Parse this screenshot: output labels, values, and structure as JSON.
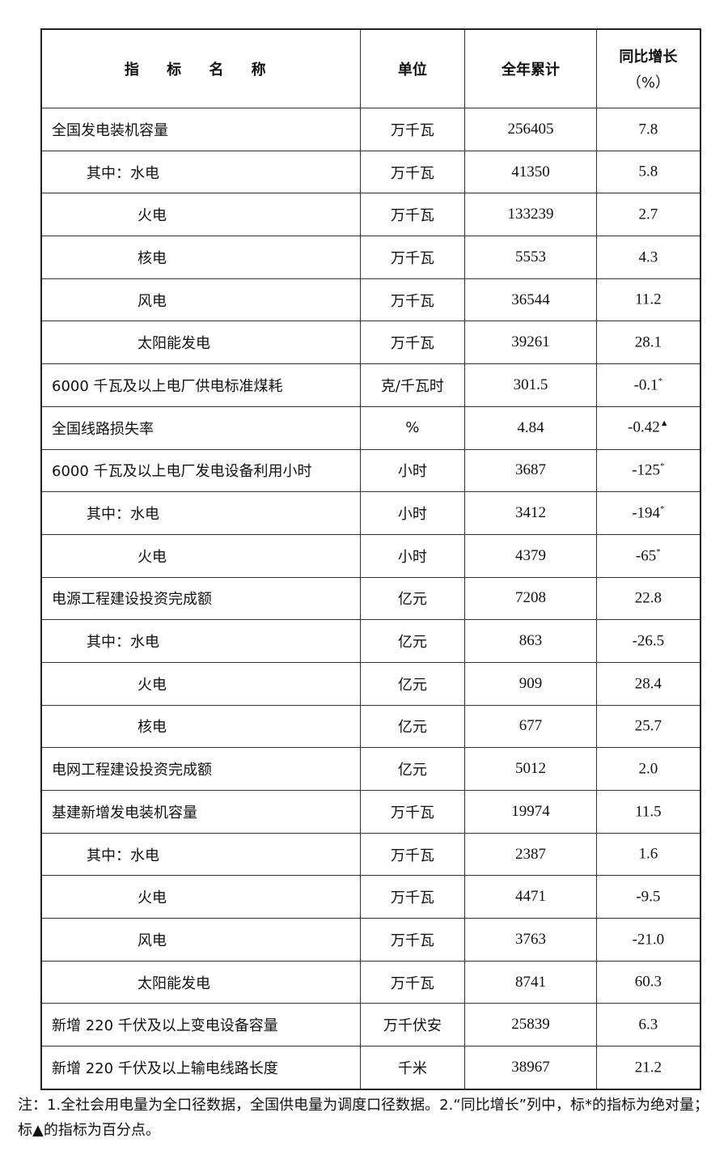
{
  "header": {
    "name": "指 标 名 称",
    "unit": "单位",
    "total": "全年累计",
    "growth_line1": "同比增长",
    "growth_line2": "（%）"
  },
  "rows": [
    {
      "name": "全国发电装机容量",
      "level": 0,
      "unit": "万千瓦",
      "total": "256405",
      "growth": "7.8",
      "mark": ""
    },
    {
      "name": "其中：水电",
      "level": 1,
      "unit": "万千瓦",
      "total": "41350",
      "growth": "5.8",
      "mark": ""
    },
    {
      "name": "火电",
      "level": 2,
      "unit": "万千瓦",
      "total": "133239",
      "growth": "2.7",
      "mark": ""
    },
    {
      "name": "核电",
      "level": 2,
      "unit": "万千瓦",
      "total": "5553",
      "growth": "4.3",
      "mark": ""
    },
    {
      "name": "风电",
      "level": 2,
      "unit": "万千瓦",
      "total": "36544",
      "growth": "11.2",
      "mark": ""
    },
    {
      "name": "太阳能发电",
      "level": 2,
      "unit": "万千瓦",
      "total": "39261",
      "growth": "28.1",
      "mark": ""
    },
    {
      "name": "6000 千瓦及以上电厂供电标准煤耗",
      "level": 0,
      "unit": "克/千瓦时",
      "total": "301.5",
      "growth": "-0.1",
      "mark": "*"
    },
    {
      "name": "全国线路损失率",
      "level": 0,
      "unit": "%",
      "total": "4.84",
      "growth": "-0.42",
      "mark": "▲"
    },
    {
      "name": "6000 千瓦及以上电厂发电设备利用小时",
      "level": 0,
      "unit": "小时",
      "total": "3687",
      "growth": "-125",
      "mark": "*"
    },
    {
      "name": "其中：水电",
      "level": 1,
      "unit": "小时",
      "total": "3412",
      "growth": "-194",
      "mark": "*"
    },
    {
      "name": "火电",
      "level": 2,
      "unit": "小时",
      "total": "4379",
      "growth": "-65",
      "mark": "*"
    },
    {
      "name": "电源工程建设投资完成额",
      "level": 0,
      "unit": "亿元",
      "total": "7208",
      "growth": "22.8",
      "mark": ""
    },
    {
      "name": "其中：水电",
      "level": 1,
      "unit": "亿元",
      "total": "863",
      "growth": "-26.5",
      "mark": ""
    },
    {
      "name": "火电",
      "level": 2,
      "unit": "亿元",
      "total": "909",
      "growth": "28.4",
      "mark": ""
    },
    {
      "name": "核电",
      "level": 2,
      "unit": "亿元",
      "total": "677",
      "growth": "25.7",
      "mark": ""
    },
    {
      "name": "电网工程建设投资完成额",
      "level": 0,
      "unit": "亿元",
      "total": "5012",
      "growth": "2.0",
      "mark": ""
    },
    {
      "name": "基建新增发电装机容量",
      "level": 0,
      "unit": "万千瓦",
      "total": "19974",
      "growth": "11.5",
      "mark": ""
    },
    {
      "name": "其中：水电",
      "level": 1,
      "unit": "万千瓦",
      "total": "2387",
      "growth": "1.6",
      "mark": ""
    },
    {
      "name": "火电",
      "level": 2,
      "unit": "万千瓦",
      "total": "4471",
      "growth": "-9.5",
      "mark": ""
    },
    {
      "name": "风电",
      "level": 2,
      "unit": "万千瓦",
      "total": "3763",
      "growth": "-21.0",
      "mark": ""
    },
    {
      "name": "太阳能发电",
      "level": 2,
      "unit": "万千瓦",
      "total": "8741",
      "growth": "60.3",
      "mark": ""
    },
    {
      "name": "新增 220 千伏及以上变电设备容量",
      "level": 0,
      "unit": "万千伏安",
      "total": "25839",
      "growth": "6.3",
      "mark": ""
    },
    {
      "name": "新增 220 千伏及以上输电线路长度",
      "level": 0,
      "unit": "千米",
      "total": "38967",
      "growth": "21.2",
      "mark": ""
    }
  ],
  "note": "注：1.全社会用电量为全口径数据，全国供电量为调度口径数据。2.“同比增长”列中，标*的指标为绝对量；标▲的指标为百分点。"
}
